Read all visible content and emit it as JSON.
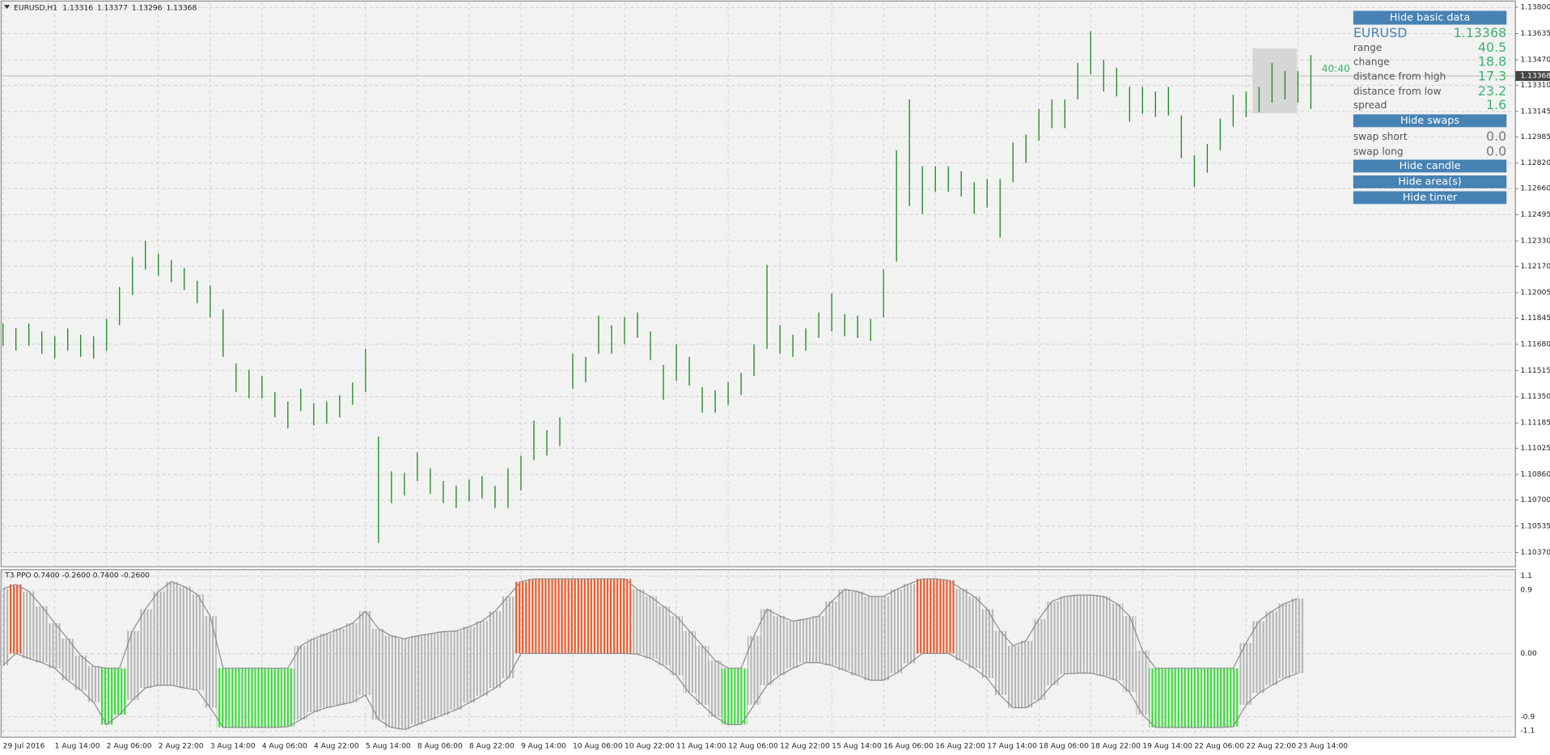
{
  "chart_data": [
    {
      "type": "hilo",
      "title": "EURUSD,H1",
      "ohlc": [
        1.13316,
        1.13377,
        1.13296,
        1.13368
      ],
      "color": "#1f8c1f",
      "grid": true,
      "last": 1.13368,
      "categories": [
        "29 Jul 2016",
        null,
        null,
        null,
        "1 Aug 14:00",
        null,
        null,
        null,
        "2 Aug 06:00",
        null,
        null,
        null,
        "2 Aug 22:00",
        null,
        null,
        null,
        "3 Aug 14:00",
        null,
        null,
        null,
        "4 Aug 06:00",
        null,
        null,
        null,
        "4 Aug 22:00",
        null,
        null,
        null,
        "5 Aug 14:00",
        null,
        null,
        null,
        "8 Aug 06:00",
        null,
        null,
        null,
        "8 Aug 22:00",
        null,
        null,
        null,
        "9 Aug 14:00",
        null,
        null,
        null,
        "10 Aug 06:00",
        null,
        null,
        null,
        "10 Aug 22:00",
        null,
        null,
        null,
        "11 Aug 14:00",
        null,
        null,
        null,
        "12 Aug 06:00",
        null,
        null,
        null,
        "12 Aug 22:00",
        null,
        null,
        null,
        "15 Aug 14:00",
        null,
        null,
        null,
        "16 Aug 06:00",
        null,
        null,
        null,
        "16 Aug 22:00",
        null,
        null,
        null,
        "17 Aug 14:00",
        null,
        null,
        null,
        "18 Aug 06:00",
        null,
        null,
        null,
        "18 Aug 22:00",
        null,
        null,
        null,
        "19 Aug 14:00",
        null,
        null,
        null,
        "22 Aug 06:00",
        null,
        null,
        null,
        "22 Aug 22:00",
        null,
        null,
        null,
        "23 Aug 14:00",
        null
      ],
      "high": [
        1.1181,
        1.1178,
        1.1181,
        1.1176,
        1.1173,
        1.1178,
        1.1174,
        1.1173,
        1.1184,
        1.1204,
        1.1223,
        1.1233,
        1.1225,
        1.1221,
        1.1216,
        1.1208,
        1.1205,
        1.119,
        1.1156,
        1.1152,
        1.1148,
        1.1138,
        1.1132,
        1.114,
        1.1131,
        1.1132,
        1.1136,
        1.1144,
        1.1165,
        1.111,
        1.1088,
        1.1087,
        1.11,
        1.109,
        1.1082,
        1.1079,
        1.1083,
        1.1085,
        1.1079,
        1.109,
        1.1098,
        1.112,
        1.1114,
        1.1122,
        1.1162,
        1.116,
        1.1186,
        1.118,
        1.1185,
        1.1188,
        1.1176,
        1.1155,
        1.1168,
        1.116,
        1.1141,
        1.1139,
        1.1144,
        1.115,
        1.1168,
        1.1218,
        1.118,
        1.1174,
        1.1178,
        1.1188,
        1.12,
        1.1187,
        1.1186,
        1.1184,
        1.1215,
        1.129,
        1.1322,
        1.128,
        1.128,
        1.128,
        1.1277,
        1.127,
        1.1272,
        1.1272,
        1.1295,
        1.13,
        1.1316,
        1.1322,
        1.1322,
        1.1345,
        1.1365,
        1.1347,
        1.1342,
        1.133,
        1.133,
        1.1327,
        1.133,
        1.1312,
        1.1287,
        1.1294,
        1.131,
        1.1325,
        1.1327,
        1.133,
        1.1345,
        1.134,
        1.134,
        1.135
      ],
      "low": [
        1.1167,
        1.1164,
        1.1167,
        1.1162,
        1.1159,
        1.1164,
        1.116,
        1.1159,
        1.1164,
        1.118,
        1.1199,
        1.1215,
        1.1211,
        1.1207,
        1.1202,
        1.1194,
        1.1185,
        1.116,
        1.1138,
        1.1134,
        1.1134,
        1.1122,
        1.1115,
        1.1126,
        1.1117,
        1.1118,
        1.1122,
        1.113,
        1.1138,
        1.1043,
        1.1068,
        1.1073,
        1.1082,
        1.1074,
        1.1068,
        1.1065,
        1.1069,
        1.1071,
        1.1065,
        1.1065,
        1.1076,
        1.1095,
        1.1098,
        1.1104,
        1.114,
        1.1144,
        1.1162,
        1.1162,
        1.1168,
        1.1172,
        1.1158,
        1.1133,
        1.1145,
        1.1142,
        1.1125,
        1.1125,
        1.113,
        1.1136,
        1.1148,
        1.1165,
        1.1162,
        1.116,
        1.1164,
        1.1172,
        1.1176,
        1.1173,
        1.1172,
        1.117,
        1.1185,
        1.122,
        1.1255,
        1.125,
        1.1264,
        1.1264,
        1.1261,
        1.125,
        1.1254,
        1.1235,
        1.127,
        1.1282,
        1.1296,
        1.1304,
        1.1304,
        1.1322,
        1.1338,
        1.1327,
        1.1324,
        1.1308,
        1.1313,
        1.1311,
        1.1312,
        1.1285,
        1.1267,
        1.1276,
        1.129,
        1.1305,
        1.1311,
        1.1314,
        1.132,
        1.1322,
        1.132,
        1.1316
      ],
      "ylim": [
        1.1028,
        1.1384
      ],
      "yticks": [
        {
          "value": 1.138,
          "label": "1.13800"
        },
        {
          "value": 1.13635,
          "label": "1.13635"
        },
        {
          "value": 1.1347,
          "label": "1.13470"
        },
        {
          "value": 1.1331,
          "label": "1.13310"
        },
        {
          "value": 1.13145,
          "label": "1.13145"
        },
        {
          "value": 1.12985,
          "label": "1.12985"
        },
        {
          "value": 1.1282,
          "label": "1.12820"
        },
        {
          "value": 1.1266,
          "label": "1.12660"
        },
        {
          "value": 1.12495,
          "label": "1.12495"
        },
        {
          "value": 1.1233,
          "label": "1.12330"
        },
        {
          "value": 1.1217,
          "label": "1.12170"
        },
        {
          "value": 1.12005,
          "label": "1.12005"
        },
        {
          "value": 1.11845,
          "label": "1.11845"
        },
        {
          "value": 1.1168,
          "label": "1.11680"
        },
        {
          "value": 1.11515,
          "label": "1.11515"
        },
        {
          "value": 1.1135,
          "label": "1.11350"
        },
        {
          "value": 1.11185,
          "label": "1.11185"
        },
        {
          "value": 1.11025,
          "label": "1.11025"
        },
        {
          "value": 1.1086,
          "label": "1.10860"
        },
        {
          "value": 1.107,
          "label": "1.10700"
        },
        {
          "value": 1.10535,
          "label": "1.10535"
        },
        {
          "value": 1.1037,
          "label": "1.10370"
        }
      ]
    },
    {
      "type": "band",
      "title": "T3 PPO 0.7400 -0.2600 0.7400 -0.2600",
      "outline": "#8c8c8c",
      "upper": [
        0.92,
        0.98,
        0.88,
        0.67,
        0.43,
        0.21,
        -0.03,
        -0.18,
        -0.21,
        -0.21,
        0.32,
        0.63,
        0.88,
        1.02,
        0.95,
        0.84,
        0.53,
        -0.21,
        -0.21,
        -0.21,
        -0.21,
        -0.21,
        -0.21,
        0.11,
        0.21,
        0.28,
        0.35,
        0.43,
        0.6,
        0.35,
        0.25,
        0.21,
        0.25,
        0.28,
        0.31,
        0.32,
        0.38,
        0.46,
        0.6,
        0.81,
        1.02,
        1.06,
        1.06,
        1.06,
        1.06,
        1.06,
        1.06,
        1.06,
        1.06,
        0.91,
        0.81,
        0.67,
        0.53,
        0.32,
        0.11,
        -0.1,
        -0.21,
        -0.21,
        0.25,
        0.63,
        0.53,
        0.46,
        0.49,
        0.53,
        0.74,
        0.91,
        0.88,
        0.81,
        0.81,
        0.91,
        0.99,
        1.06,
        1.06,
        1.04,
        0.92,
        0.81,
        0.63,
        0.32,
        0.11,
        0.18,
        0.49,
        0.74,
        0.81,
        0.83,
        0.83,
        0.81,
        0.71,
        0.53,
        0.04,
        -0.21,
        -0.21,
        -0.21,
        -0.21,
        -0.21,
        -0.21,
        -0.21,
        0.15,
        0.46,
        0.6,
        0.71,
        0.78,
        null
      ],
      "lower": [
        -0.17,
        0,
        -0.07,
        -0.13,
        -0.21,
        -0.38,
        -0.52,
        -0.69,
        -1.01,
        -0.87,
        -0.66,
        -0.49,
        -0.45,
        -0.45,
        -0.49,
        -0.52,
        -0.77,
        -1.05,
        -1.05,
        -1.05,
        -1.05,
        -1.05,
        -1.04,
        -0.94,
        -0.83,
        -0.77,
        -0.73,
        -0.69,
        -0.59,
        -0.94,
        -1.05,
        -1.08,
        -1.01,
        -0.94,
        -0.87,
        -0.8,
        -0.7,
        -0.6,
        -0.49,
        -0.35,
        0,
        0,
        0,
        0,
        0,
        0,
        0,
        0,
        0,
        -0.01,
        -0.07,
        -0.17,
        -0.31,
        -0.56,
        -0.73,
        -0.9,
        -1.01,
        -1.01,
        -0.73,
        -0.45,
        -0.31,
        -0.21,
        -0.13,
        -0.13,
        -0.17,
        -0.24,
        -0.31,
        -0.38,
        -0.38,
        -0.28,
        -0.14,
        0,
        0,
        0,
        -0.1,
        -0.21,
        -0.35,
        -0.59,
        -0.77,
        -0.77,
        -0.66,
        -0.45,
        -0.29,
        -0.28,
        -0.28,
        -0.32,
        -0.38,
        -0.55,
        -0.87,
        -1.05,
        -1.05,
        -1.05,
        -1.05,
        -1.05,
        -1.05,
        -1.04,
        -0.73,
        -0.56,
        -0.45,
        -0.35,
        -0.28,
        null
      ],
      "colors": [
        "#b4b4b4",
        "#ff4d1a",
        "#b4b4b4",
        "#b4b4b4",
        "#b4b4b4",
        "#b4b4b4",
        "#b4b4b4",
        "#b4b4b4",
        "#2ede2e",
        "#2ede2e",
        "#b4b4b4",
        "#b4b4b4",
        "#b4b4b4",
        "#b4b4b4",
        "#b4b4b4",
        "#b4b4b4",
        "#b4b4b4",
        "#2ede2e",
        "#2ede2e",
        "#2ede2e",
        "#2ede2e",
        "#2ede2e",
        "#2ede2e",
        "#b4b4b4",
        "#b4b4b4",
        "#b4b4b4",
        "#b4b4b4",
        "#b4b4b4",
        "#b4b4b4",
        "#b4b4b4",
        "#b4b4b4",
        "#b4b4b4",
        "#b4b4b4",
        "#b4b4b4",
        "#b4b4b4",
        "#b4b4b4",
        "#b4b4b4",
        "#b4b4b4",
        "#b4b4b4",
        "#b4b4b4",
        "#ff4d1a",
        "#ff4d1a",
        "#ff4d1a",
        "#ff4d1a",
        "#ff4d1a",
        "#ff4d1a",
        "#ff4d1a",
        "#ff4d1a",
        "#ff4d1a",
        "#b4b4b4",
        "#b4b4b4",
        "#b4b4b4",
        "#b4b4b4",
        "#b4b4b4",
        "#b4b4b4",
        "#b4b4b4",
        "#2ede2e",
        "#2ede2e",
        "#b4b4b4",
        "#b4b4b4",
        "#b4b4b4",
        "#b4b4b4",
        "#b4b4b4",
        "#b4b4b4",
        "#b4b4b4",
        "#b4b4b4",
        "#b4b4b4",
        "#b4b4b4",
        "#b4b4b4",
        "#b4b4b4",
        "#b4b4b4",
        "#ff4d1a",
        "#ff4d1a",
        "#ff4d1a",
        "#b4b4b4",
        "#b4b4b4",
        "#b4b4b4",
        "#b4b4b4",
        "#b4b4b4",
        "#b4b4b4",
        "#b4b4b4",
        "#b4b4b4",
        "#b4b4b4",
        "#b4b4b4",
        "#b4b4b4",
        "#b4b4b4",
        "#b4b4b4",
        "#b4b4b4",
        "#b4b4b4",
        "#2ede2e",
        "#2ede2e",
        "#2ede2e",
        "#2ede2e",
        "#2ede2e",
        "#2ede2e",
        "#2ede2e",
        "#b4b4b4",
        "#b4b4b4",
        "#b4b4b4",
        "#b4b4b4",
        "#b4b4b4",
        "#b4b4b4"
      ],
      "ylim": [
        -1.19,
        1.19
      ],
      "yticks": [
        1.1,
        0.9,
        {
          "value": 0,
          "label": "0.00"
        },
        -0.9,
        -1.1
      ]
    }
  ],
  "panel": {
    "buttons": [
      "Hide basic data",
      "Hide swaps",
      "Hide candle",
      "Hide area(s)",
      "Hide timer"
    ],
    "symbol": "EURUSD",
    "bid": 1.13368,
    "rows": [
      {
        "label": "range",
        "value": 40.5
      },
      {
        "label": "change",
        "value": 18.8
      },
      {
        "label": "distance from high",
        "value": 17.3
      },
      {
        "label": "distance from low",
        "value": 23.2
      },
      {
        "label": "spread",
        "value": 1.6
      }
    ],
    "swaps": [
      {
        "label": "swap short",
        "value": "0.0"
      },
      {
        "label": "swap long",
        "value": "0.0"
      }
    ],
    "timer": "40:40"
  }
}
